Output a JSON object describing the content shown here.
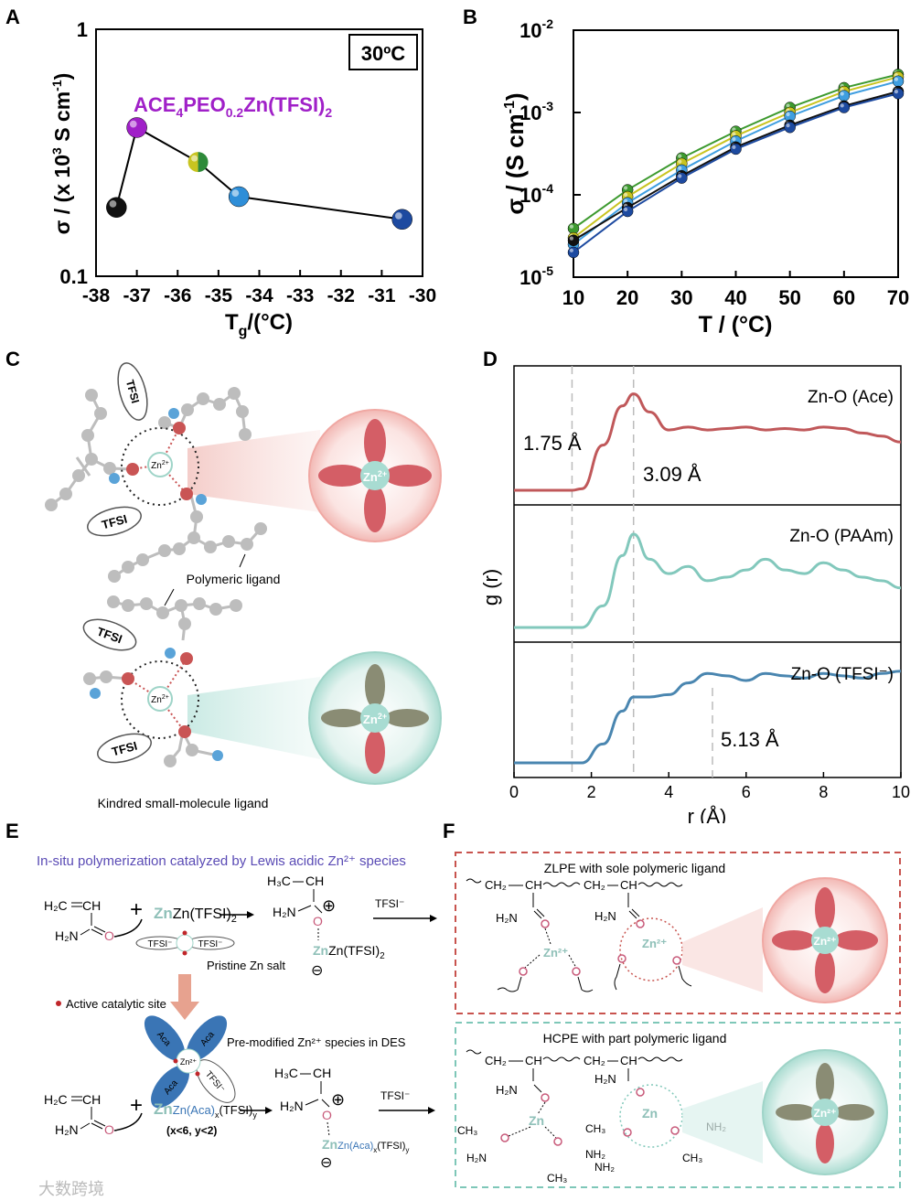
{
  "panel_a": {
    "letter": "A",
    "badge": "30ºC",
    "highlight_label": "ACE",
    "highlight_sub1": "4",
    "highlight_mid": "PEO",
    "highlight_sub2": "0.2",
    "highlight_tail": "Zn(TFSI)",
    "highlight_sub3": "2",
    "ylabel": "σ / (x 10",
    "ylabel_sup": "3",
    "ylabel_tail": " S cm",
    "ylabel_sup2": "-1",
    "ylabel_end": ")",
    "xlabel": "T",
    "xlabel_sub": "g",
    "xlabel_tail": "/(°C)",
    "y_ticks": [
      "1",
      "0.1"
    ],
    "x_ticks": [
      "-38",
      "-37",
      "-36",
      "-35",
      "-34",
      "-33",
      "-32",
      "-31",
      "-30"
    ]
  },
  "panel_b": {
    "letter": "B",
    "ylabel": "σ / (S cm",
    "ylabel_sup": "-1",
    "ylabel_end": ")",
    "xlabel": "T / (°C)",
    "y_ticks": [
      {
        "base": "10",
        "exp": "-2"
      },
      {
        "base": "10",
        "exp": "-3"
      },
      {
        "base": "10",
        "exp": "-4"
      },
      {
        "base": "10",
        "exp": "-5"
      }
    ],
    "x_ticks": [
      "10",
      "20",
      "30",
      "40",
      "50",
      "60",
      "70"
    ]
  },
  "panel_c": {
    "letter": "C",
    "tfsi": "TFSI",
    "zn": "Zn",
    "zn_sup": "2+",
    "polymeric_label": "Polymeric ligand",
    "small_label": "Kindred small-molecule ligand"
  },
  "panel_d": {
    "letter": "D",
    "ylabel": "g (r)",
    "xlabel": "r (Å)",
    "x_ticks": [
      "0",
      "2",
      "4",
      "6",
      "8",
      "10"
    ],
    "trace1_label": "Zn-O (Ace)",
    "trace2_label": "Zn-O (PAAm)",
    "trace3_label": "Zn-O (TFSI⁻)",
    "ann1": "1.75 Å",
    "ann2": "3.09 Å",
    "ann3": "5.13 Å"
  },
  "panel_e": {
    "letter": "E",
    "title": "In-situ polymerization catalyzed by Lewis acidic Zn²⁺ species",
    "pristine_label": "Pristine Zn salt",
    "active_site": "Active catalytic site",
    "premod_label": "Pre-modified Zn²⁺ species in DES",
    "x_condition": "(x<6, y<2)",
    "tfsi_minus": "TFSI⁻",
    "aca": "Aca",
    "zn_tfsi2": "Zn(TFSI)",
    "zn_aca": "Zn(Aca)",
    "x_sub": "x",
    "tfsi_y": "(TFSI)",
    "y_sub": "y",
    "h2c": "H₂C",
    "ch": "CH",
    "h2n": "H₂N",
    "h3c": "H₃C",
    "o": "O",
    "plus": "+",
    "circled_plus": "⊕",
    "circled_minus": "⊖"
  },
  "panel_f": {
    "letter": "F",
    "box1_title": "ZLPE with sole polymeric ligand",
    "box2_title": "HCPE with part polymeric ligand",
    "ch2": "CH₂",
    "ch": "CH",
    "h2n": "H₂N",
    "zn": "Zn",
    "zn2": "Zn²⁺",
    "ch3": "CH₃",
    "nh2": "NH₂"
  },
  "watermark": "大数跨境",
  "chart_data": [
    {
      "panel": "A",
      "type": "scatter",
      "title": "30ºC",
      "xlabel": "Tg/(°C)",
      "ylabel": "σ / (x 10³ S cm⁻¹)",
      "yscale": "log",
      "xlim": [
        -38,
        -30
      ],
      "ylim": [
        0.1,
        1
      ],
      "x": [
        -37.5,
        -37.0,
        -35.5,
        -34.5,
        -30.5
      ],
      "y": [
        0.19,
        0.4,
        0.29,
        0.21,
        0.17
      ],
      "colors": [
        "#111111",
        "#a020c8",
        "#b8c020",
        "#2e8ed8",
        "#1d4aa0"
      ]
    },
    {
      "panel": "B",
      "type": "line",
      "xlabel": "T / (°C)",
      "ylabel": "σ / (S cm⁻¹)",
      "yscale": "log",
      "xlim": [
        10,
        70
      ],
      "ylim": [
        1e-05,
        0.01
      ],
      "x": [
        10,
        20,
        30,
        40,
        50,
        60,
        70
      ],
      "series": [
        {
          "name": "green",
          "color": "#3d9a2f",
          "values": [
            3.9e-05,
            0.000115,
            0.00028,
            0.00059,
            0.00115,
            0.002,
            0.0029
          ]
        },
        {
          "name": "yellow",
          "color": "#c8c420",
          "values": [
            3e-05,
            9.5e-05,
            0.00024,
            0.00052,
            0.001,
            0.0018,
            0.0027
          ]
        },
        {
          "name": "light blue",
          "color": "#3f9ee0",
          "values": [
            2.5e-05,
            8e-05,
            0.0002,
            0.00045,
            0.0009,
            0.0016,
            0.0024
          ]
        },
        {
          "name": "black",
          "color": "#111111",
          "values": [
            2.8e-05,
            7e-05,
            0.00017,
            0.00038,
            0.0007,
            0.0012,
            0.0018
          ]
        },
        {
          "name": "navy",
          "color": "#1d4aa0",
          "values": [
            2e-05,
            6.3e-05,
            0.00016,
            0.00036,
            0.00066,
            0.00115,
            0.0017
          ]
        }
      ]
    },
    {
      "panel": "D",
      "type": "line",
      "xlabel": "r (Å)",
      "ylabel": "g (r)",
      "xlim": [
        0,
        10
      ],
      "x": [
        0,
        1.5,
        1.75,
        2.3,
        2.8,
        3.09,
        3.5,
        4.0,
        4.5,
        5.0,
        5.5,
        6.0,
        6.5,
        7.0,
        7.5,
        8.0,
        8.5,
        9.0,
        9.5,
        10
      ],
      "series": [
        {
          "name": "Zn-O (Ace)",
          "color": "#c0585a",
          "values": [
            0,
            0,
            0.05,
            1.5,
            2.8,
            3.2,
            2.6,
            2.0,
            2.1,
            2.0,
            2.05,
            2.1,
            2.0,
            2.05,
            2.0,
            2.1,
            2.05,
            1.9,
            1.8,
            1.6
          ]
        },
        {
          "name": "Zn-O (PAAm)",
          "color": "#82c8bc",
          "values": [
            0,
            0,
            0,
            0.6,
            2.0,
            2.6,
            1.9,
            1.5,
            1.7,
            1.3,
            1.4,
            1.6,
            1.9,
            1.6,
            1.5,
            1.8,
            1.6,
            1.4,
            1.3,
            1.1
          ]
        },
        {
          "name": "Zn-O (TFSI⁻)",
          "color": "#4a86b0",
          "values": [
            0,
            0,
            0,
            0.4,
            1.1,
            1.4,
            1.4,
            1.45,
            1.7,
            1.9,
            1.85,
            1.75,
            1.9,
            1.85,
            1.8,
            1.9,
            1.85,
            1.8,
            1.9,
            1.95
          ]
        }
      ]
    }
  ]
}
